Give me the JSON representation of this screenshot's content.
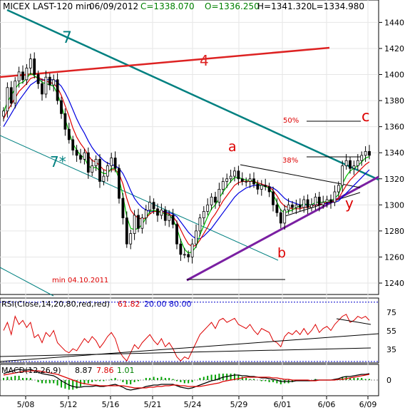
{
  "header": {
    "symbol": "MICEX LAST-120 min",
    "date": "06/09/2012",
    "close": "C=1338.070",
    "open": "O=1336.250",
    "high": "H=1341.320",
    "low": "L=1334.980"
  },
  "rsi_panel": {
    "label": "RSI(Close,14,20,80,red,red)",
    "value": "61.82",
    "level_low": "20.00",
    "level_high": "80.00",
    "y_ticks": [
      "75",
      "55",
      "35"
    ]
  },
  "macd_panel": {
    "label": "MACD(12,26,9)",
    "macd": "8.87",
    "signal": "7.86",
    "hist": "1.01",
    "y_ticks": [
      "0"
    ]
  },
  "annotations": {
    "line_7": "7",
    "line_7star": "7*",
    "line_4": "4",
    "wave_a": "a",
    "wave_b": "b",
    "wave_c": "c",
    "wave_y": "y",
    "fib_50": "50%",
    "fib_38": "38%",
    "min_note": "min 04.10.2011"
  },
  "colors": {
    "candle": "#000000",
    "ma_fast": "#00c000",
    "ma_mid": "#e00000",
    "ma_slow": "#0000e0",
    "trend_7": "#008080",
    "trend_4": "#dd2222",
    "support": "#7a1fa2",
    "rsi": "#dd0000",
    "annotation": "#dd0000",
    "macd_line": "#000000",
    "signal_line": "#dd0000",
    "hist": "#00a000"
  },
  "chart_data": {
    "type": "candlestick",
    "ylim": [
      1232,
      1456
    ],
    "y_ticks": [
      1240,
      1260,
      1280,
      1300,
      1320,
      1340,
      1360,
      1380,
      1400,
      1420,
      1440
    ],
    "x_tick_labels": [
      "5/08",
      "5/12",
      "5/16",
      "5/21",
      "5/24",
      "5/29",
      "6/01",
      "6/06",
      "6/09"
    ],
    "close": [
      1372,
      1390,
      1378,
      1395,
      1402,
      1396,
      1405,
      1412,
      1400,
      1393,
      1385,
      1398,
      1392,
      1396,
      1380,
      1370,
      1358,
      1350,
      1342,
      1338,
      1335,
      1340,
      1325,
      1330,
      1335,
      1318,
      1322,
      1330,
      1336,
      1328,
      1305,
      1290,
      1270,
      1278,
      1292,
      1282,
      1290,
      1296,
      1302,
      1297,
      1292,
      1296,
      1288,
      1292,
      1285,
      1270,
      1262,
      1262,
      1260,
      1270,
      1280,
      1290,
      1295,
      1300,
      1306,
      1302,
      1312,
      1318,
      1320,
      1322,
      1326,
      1320,
      1318,
      1318,
      1320,
      1316,
      1312,
      1315,
      1314,
      1310,
      1300,
      1294,
      1286,
      1296,
      1300,
      1298,
      1300,
      1298,
      1304,
      1298,
      1300,
      1306,
      1300,
      1302,
      1304,
      1302,
      1310,
      1315,
      1330,
      1334,
      1328,
      1330,
      1334,
      1338,
      1341,
      1338
    ],
    "ma_fast": [
      1371,
      1379,
      1384,
      1389,
      1393,
      1394,
      1397,
      1401,
      1399,
      1397,
      1394,
      1393,
      1392,
      1391,
      1385,
      1377,
      1366,
      1356,
      1347,
      1342,
      1338,
      1336,
      1330,
      1328,
      1329,
      1326,
      1324,
      1324,
      1328,
      1328,
      1320,
      1307,
      1291,
      1282,
      1281,
      1282,
      1285,
      1290,
      1295,
      1296,
      1295,
      1294,
      1293,
      1292,
      1289,
      1282,
      1273,
      1266,
      1263,
      1264,
      1268,
      1277,
      1284,
      1291,
      1297,
      1300,
      1305,
      1310,
      1314,
      1318,
      1321,
      1321,
      1320,
      1319,
      1319,
      1318,
      1316,
      1315,
      1314,
      1313,
      1308,
      1302,
      1296,
      1294,
      1295,
      1296,
      1298,
      1299,
      1301,
      1300,
      1300,
      1302,
      1302,
      1302,
      1303,
      1303,
      1305,
      1308,
      1316,
      1322,
      1326,
      1328,
      1330,
      1333,
      1336,
      1337
    ],
    "ma_mid": [
      1366,
      1372,
      1377,
      1382,
      1387,
      1390,
      1393,
      1397,
      1398,
      1398,
      1396,
      1395,
      1394,
      1393,
      1390,
      1384,
      1376,
      1368,
      1359,
      1352,
      1347,
      1343,
      1338,
      1334,
      1333,
      1330,
      1327,
      1326,
      1327,
      1327,
      1324,
      1316,
      1305,
      1296,
      1292,
      1290,
      1289,
      1290,
      1293,
      1295,
      1295,
      1295,
      1294,
      1293,
      1291,
      1287,
      1281,
      1275,
      1270,
      1268,
      1269,
      1273,
      1278,
      1283,
      1289,
      1293,
      1298,
      1303,
      1307,
      1311,
      1315,
      1317,
      1318,
      1318,
      1318,
      1318,
      1317,
      1316,
      1315,
      1314,
      1311,
      1307,
      1302,
      1299,
      1298,
      1297,
      1297,
      1297,
      1298,
      1298,
      1299,
      1300,
      1300,
      1301,
      1302,
      1302,
      1303,
      1305,
      1310,
      1315,
      1319,
      1322,
      1325,
      1328,
      1331,
      1333
    ],
    "ma_slow": [
      1360,
      1365,
      1370,
      1375,
      1380,
      1384,
      1388,
      1392,
      1394,
      1396,
      1396,
      1396,
      1396,
      1396,
      1394,
      1391,
      1386,
      1380,
      1373,
      1366,
      1360,
      1355,
      1349,
      1344,
      1340,
      1337,
      1334,
      1332,
      1331,
      1330,
      1328,
      1324,
      1318,
      1311,
      1305,
      1301,
      1298,
      1296,
      1295,
      1295,
      1295,
      1295,
      1295,
      1294,
      1293,
      1291,
      1287,
      1283,
      1279,
      1276,
      1274,
      1274,
      1276,
      1279,
      1282,
      1286,
      1290,
      1294,
      1298,
      1302,
      1306,
      1309,
      1311,
      1313,
      1314,
      1315,
      1315,
      1315,
      1315,
      1314,
      1313,
      1311,
      1308,
      1305,
      1303,
      1302,
      1301,
      1300,
      1300,
      1300,
      1300,
      1300,
      1300,
      1301,
      1301,
      1302,
      1302,
      1303,
      1306,
      1309,
      1312,
      1315,
      1318,
      1321,
      1324,
      1327
    ],
    "rsi": [
      52,
      60,
      48,
      66,
      58,
      62,
      55,
      60,
      45,
      48,
      40,
      50,
      46,
      52,
      40,
      36,
      32,
      30,
      34,
      32,
      38,
      44,
      40,
      46,
      42,
      35,
      40,
      46,
      50,
      44,
      32,
      26,
      22,
      30,
      38,
      34,
      40,
      44,
      48,
      42,
      38,
      44,
      36,
      40,
      34,
      26,
      22,
      26,
      24,
      32,
      40,
      48,
      52,
      56,
      60,
      54,
      62,
      64,
      60,
      62,
      64,
      58,
      56,
      54,
      58,
      52,
      48,
      54,
      52,
      50,
      42,
      40,
      36,
      46,
      50,
      48,
      52,
      48,
      54,
      48,
      52,
      58,
      50,
      54,
      56,
      52,
      58,
      62,
      66,
      68,
      60,
      62,
      66,
      64,
      66,
      62
    ],
    "macd": [
      9,
      11,
      12,
      14,
      15,
      14,
      14,
      15,
      13,
      11,
      9,
      8,
      7,
      6,
      3,
      -1,
      -4,
      -7,
      -9,
      -10,
      -10,
      -9,
      -9,
      -9,
      -8,
      -9,
      -9,
      -8,
      -7,
      -6,
      -8,
      -10,
      -13,
      -14,
      -13,
      -12,
      -11,
      -9,
      -8,
      -7,
      -7,
      -6,
      -6,
      -6,
      -6,
      -8,
      -10,
      -11,
      -12,
      -11,
      -9,
      -7,
      -5,
      -3,
      -1,
      0,
      2,
      4,
      5,
      6,
      7,
      7,
      6,
      6,
      5,
      5,
      4,
      3,
      3,
      2,
      1,
      0,
      -2,
      -2,
      -2,
      -2,
      -1,
      -1,
      -1,
      -1,
      -1,
      0,
      0,
      0,
      0,
      0,
      1,
      2,
      4,
      5,
      5,
      6,
      7,
      8,
      8,
      9
    ],
    "signal": [
      7,
      8,
      9,
      10,
      11,
      12,
      12,
      13,
      13,
      13,
      12,
      11,
      10,
      9,
      8,
      6,
      4,
      2,
      0,
      -2,
      -4,
      -5,
      -6,
      -7,
      -7,
      -8,
      -8,
      -8,
      -8,
      -8,
      -8,
      -8,
      -9,
      -10,
      -11,
      -11,
      -11,
      -11,
      -10,
      -10,
      -9,
      -9,
      -8,
      -8,
      -7,
      -7,
      -8,
      -8,
      -9,
      -9,
      -9,
      -9,
      -8,
      -7,
      -6,
      -5,
      -4,
      -2,
      -1,
      0,
      1,
      2,
      3,
      4,
      4,
      4,
      4,
      4,
      4,
      4,
      3,
      3,
      2,
      1,
      1,
      0,
      0,
      0,
      0,
      0,
      -1,
      -1,
      0,
      0,
      0,
      0,
      0,
      1,
      1,
      2,
      3,
      4,
      5,
      6,
      7,
      8
    ]
  }
}
